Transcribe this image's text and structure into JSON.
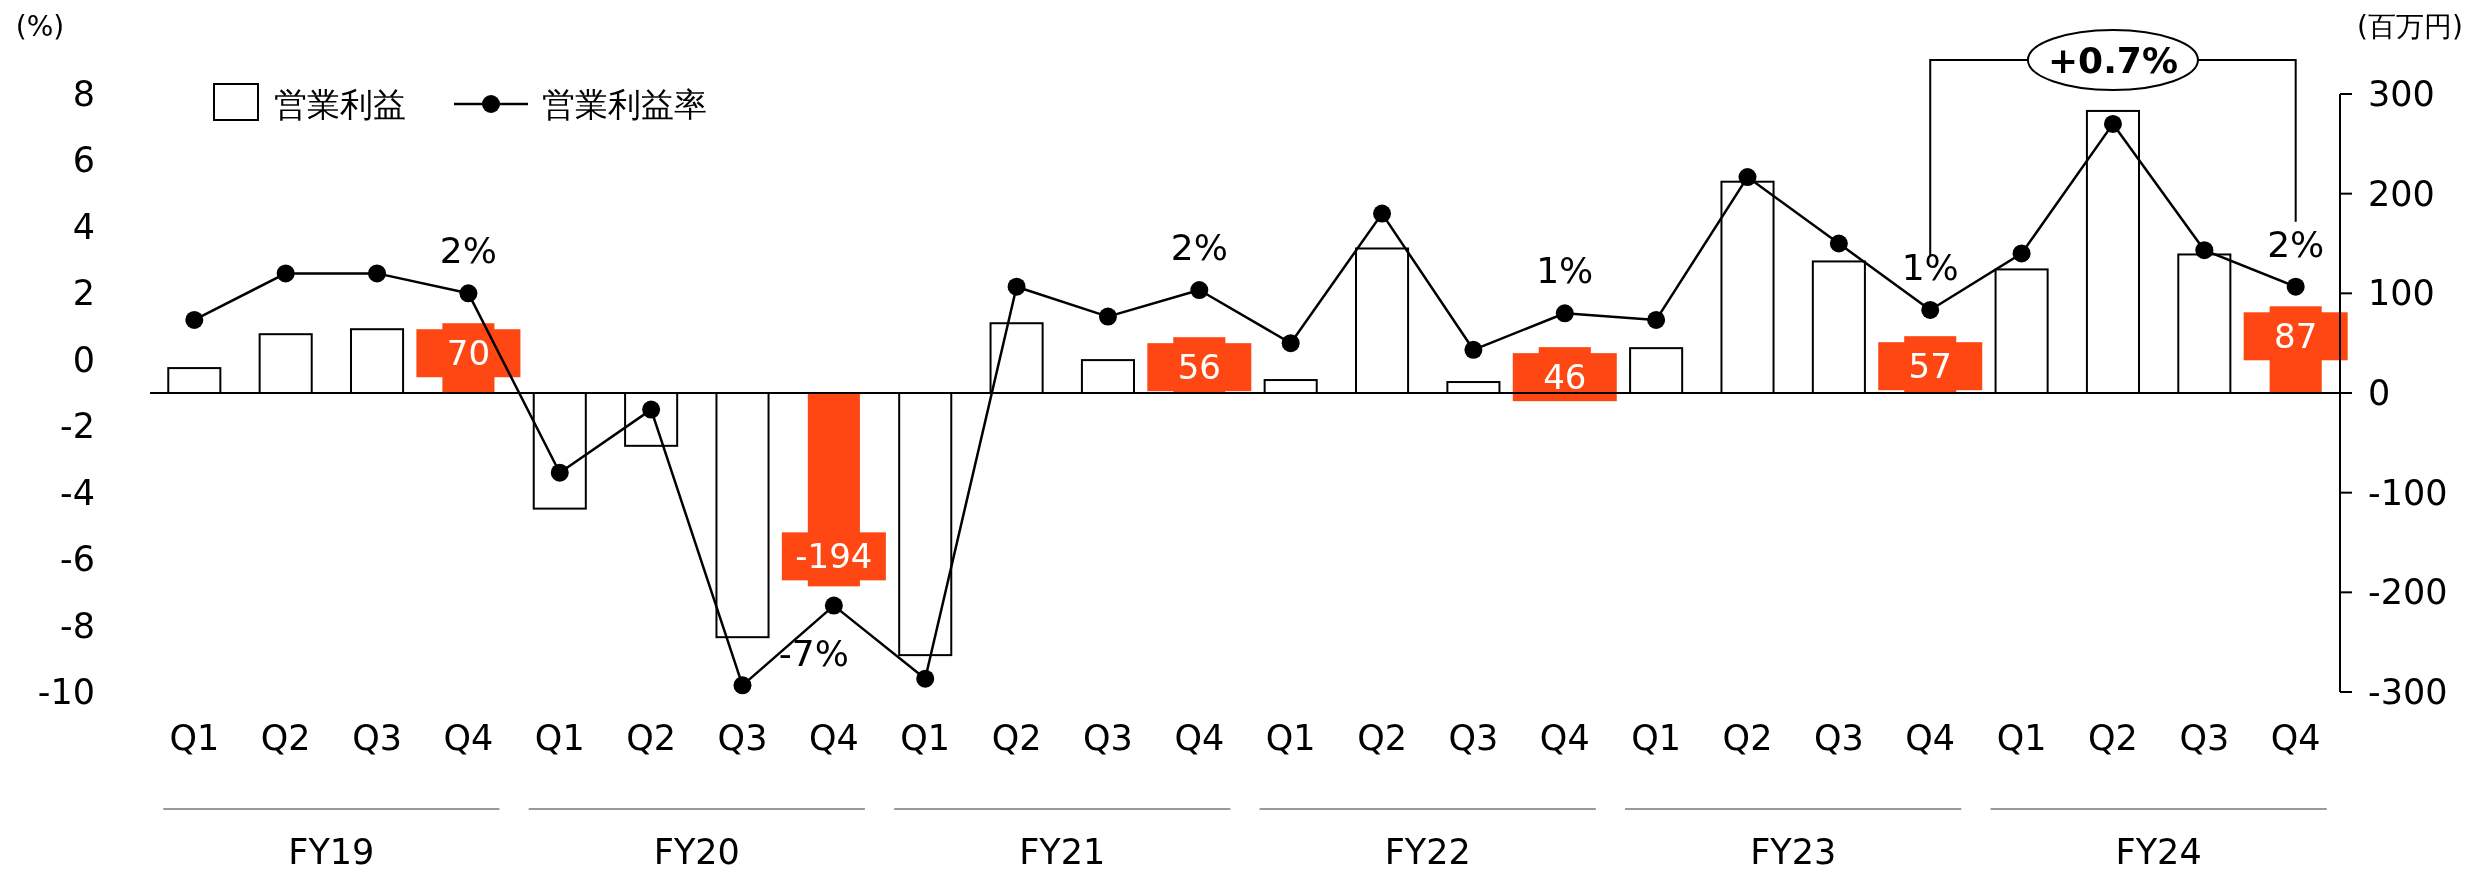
{
  "chart_data": {
    "type": "bar",
    "ylabel": "(%)",
    "y2label": "(百万円)",
    "categories": [
      "Q1",
      "Q2",
      "Q3",
      "Q4",
      "Q1",
      "Q2",
      "Q3",
      "Q4",
      "Q1",
      "Q2",
      "Q3",
      "Q4",
      "Q1",
      "Q2",
      "Q3",
      "Q4",
      "Q1",
      "Q2",
      "Q3",
      "Q4",
      "Q1",
      "Q2",
      "Q3",
      "Q4"
    ],
    "series": [
      {
        "name": "営業利益",
        "axis": "y2",
        "color": "#ffffff",
        "colors": [
          "#ffffff",
          "#ffffff",
          "#ffffff",
          "#ff4713",
          "#ffffff",
          "#ffffff",
          "#ffffff",
          "#ff4713",
          "#ffffff",
          "#ffffff",
          "#ffffff",
          "#ff4713",
          "#ffffff",
          "#ffffff",
          "#ffffff",
          "#ff4713",
          "#ffffff",
          "#ffffff",
          "#ffffff",
          "#ff4713",
          "#ffffff",
          "#ffffff",
          "#ffffff",
          "#ff4713"
        ],
        "values": [
          25,
          59,
          64,
          70,
          -116,
          -53,
          -245,
          -194,
          -263,
          70,
          33,
          56,
          13,
          145,
          11,
          46,
          45,
          212,
          132,
          57,
          124,
          283,
          139,
          87
        ],
        "value_labels": [
          null,
          null,
          null,
          "70",
          null,
          null,
          null,
          "-194",
          null,
          null,
          null,
          "56",
          null,
          null,
          null,
          "46",
          null,
          null,
          null,
          "57",
          null,
          null,
          null,
          "87"
        ]
      },
      {
        "name": "営業利益率",
        "type": "line",
        "axis": "y",
        "color": "#000000",
        "marker": "circle",
        "values": [
          1.2,
          2.6,
          2.6,
          2.0,
          -3.4,
          -1.5,
          -9.8,
          -7.4,
          -9.6,
          2.2,
          1.3,
          2.1,
          0.5,
          4.4,
          0.3,
          1.4,
          1.2,
          5.5,
          3.5,
          1.5,
          3.2,
          7.1,
          3.3,
          2.2
        ],
        "value_labels": [
          null,
          null,
          null,
          "2%",
          null,
          null,
          null,
          "-7%",
          null,
          null,
          null,
          "2%",
          null,
          null,
          null,
          "1%",
          null,
          null,
          null,
          "1%",
          null,
          null,
          null,
          "2%"
        ]
      }
    ],
    "ylim": [
      -10,
      8
    ],
    "yticks": [
      -10,
      -8,
      -6,
      -4,
      -2,
      0,
      2,
      4,
      6,
      8
    ],
    "y2lim": [
      -300,
      300
    ],
    "y2ticks": [
      -300,
      -200,
      -100,
      0,
      100,
      200,
      300
    ],
    "legend": "top left",
    "annotations": [
      "FY19",
      "FY20",
      "FY21",
      "FY22",
      "FY23",
      "FY24",
      "+0.7%"
    ]
  }
}
